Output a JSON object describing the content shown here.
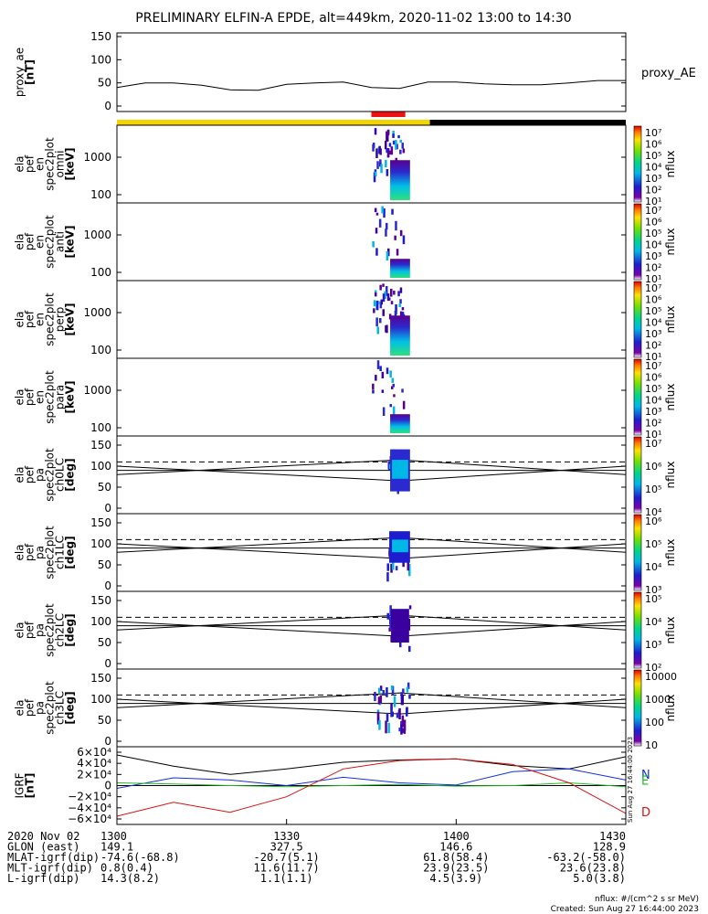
{
  "title": "PRELIMINARY ELFIN-A EPDE, alt=449km, 2020-11-02 13:00 to 14:30",
  "colors": {
    "bar_day": "#f2d500",
    "bar_night": "#000000",
    "science_zone": "#ee1111",
    "field_total": "#000000",
    "field_N": "#1030e0",
    "field_E": "#22bb22",
    "field_D": "#dd1111"
  },
  "panels": [
    {
      "label_lines": [
        "proxy_ae",
        "[nT]"
      ],
      "ticks": [
        "150",
        "100",
        "50",
        "0"
      ],
      "right_label": "proxy_AE"
    },
    {
      "label_lines": [
        "ela",
        "pef",
        "en",
        "spec2plot",
        "omni",
        "[keV]"
      ],
      "ticks": [
        "1000",
        "100"
      ],
      "cbar_ticks": [
        "10⁷",
        "10⁶",
        "10⁵",
        "10⁴",
        "10³",
        "10²",
        "10¹"
      ],
      "cbar_label": "nflux"
    },
    {
      "label_lines": [
        "ela",
        "pef",
        "en",
        "spec2plot",
        "anti",
        "[keV]"
      ],
      "ticks": [
        "1000",
        "100"
      ],
      "cbar_ticks": [
        "10⁷",
        "10⁶",
        "10⁵",
        "10⁴",
        "10³",
        "10²",
        "10¹"
      ],
      "cbar_label": "nflux"
    },
    {
      "label_lines": [
        "ela",
        "pef",
        "en",
        "spec2plot",
        "perp",
        "[keV]"
      ],
      "ticks": [
        "1000",
        "100"
      ],
      "cbar_ticks": [
        "10⁷",
        "10⁶",
        "10⁵",
        "10⁴",
        "10³",
        "10²",
        "10¹"
      ],
      "cbar_label": "nflux"
    },
    {
      "label_lines": [
        "ela",
        "pef",
        "en",
        "spec2plot",
        "para",
        "[keV]"
      ],
      "ticks": [
        "1000",
        "100"
      ],
      "cbar_ticks": [
        "10⁷",
        "10⁶",
        "10⁵",
        "10⁴",
        "10³",
        "10²",
        "10¹"
      ],
      "cbar_label": "nflux"
    },
    {
      "label_lines": [
        "ela",
        "pef",
        "pa",
        "spec2plot",
        "ch0LC",
        "[deg]"
      ],
      "ticks": [
        "150",
        "100",
        "50",
        "0"
      ],
      "cbar_ticks": [
        "10⁷",
        "10⁶",
        "10⁵",
        "10⁴"
      ],
      "cbar_label": "nflux"
    },
    {
      "label_lines": [
        "ela",
        "pef",
        "pa",
        "spec2plot",
        "ch1LC",
        "[deg]"
      ],
      "ticks": [
        "150",
        "100",
        "50",
        "0"
      ],
      "cbar_ticks": [
        "10⁶",
        "10⁵",
        "10⁴",
        "10³"
      ],
      "cbar_label": "nflux"
    },
    {
      "label_lines": [
        "ela",
        "pef",
        "pa",
        "spec2plot",
        "ch2LC",
        "[deg]"
      ],
      "ticks": [
        "150",
        "100",
        "50",
        "0"
      ],
      "cbar_ticks": [
        "10⁵",
        "10⁴",
        "10³",
        "10²"
      ],
      "cbar_label": "nflux"
    },
    {
      "label_lines": [
        "ela",
        "pef",
        "pa",
        "spec2plot",
        "ch3LC",
        "[deg]"
      ],
      "ticks": [
        "150",
        "100",
        "50",
        "0"
      ],
      "cbar_ticks": [
        "10000",
        "1000",
        "100",
        "10"
      ],
      "cbar_label": "nflux"
    },
    {
      "label_lines": [
        "IGRF",
        "[nT]"
      ],
      "ticks": [
        "6×10⁴",
        "4×10⁴",
        "2×10⁴",
        "0",
        "−2×10⁴",
        "−4×10⁴",
        "−6×10⁴"
      ],
      "legend": [
        "N",
        "E",
        "D"
      ],
      "stamp": "Sun Aug 27 16:44:00 2023"
    }
  ],
  "footer": {
    "rows": [
      {
        "label": "2020 Nov 02",
        "values": [
          "1300",
          "1330",
          "1400",
          "1430"
        ]
      },
      {
        "label": "GLON (east)",
        "values": [
          "149.1",
          "327.5",
          "146.6",
          "128.9"
        ]
      },
      {
        "label": "MLAT-igrf(dip)",
        "values": [
          "-74.6(-68.8)",
          "-20.7(5.1)",
          "61.8(58.4)",
          "-63.2(-58.0)"
        ]
      },
      {
        "label": "MLT-igrf(dip)",
        "values": [
          "0.8(0.4)",
          "11.6(11.7)",
          "23.9(23.5)",
          "23.6(23.8)"
        ]
      },
      {
        "label": "L-igrf(dip)",
        "values": [
          "14.3(8.2)",
          "1.1(1.1)",
          "4.5(3.9)",
          "5.0(3.8)"
        ]
      }
    ],
    "units_note": "nflux: #/(cm^2 s sr MeV)",
    "created": "Created: Sun Aug 27 16:44:00 2023"
  },
  "chart_data": {
    "type": "line",
    "x_range": [
      "2020-11-02 13:00",
      "2020-11-02 14:30"
    ],
    "proxy_ae": {
      "ylim": [
        0,
        150
      ],
      "x": [
        "13:00",
        "13:05",
        "13:10",
        "13:15",
        "13:20",
        "13:25",
        "13:30",
        "13:35",
        "13:40",
        "13:45",
        "13:50",
        "13:55",
        "14:00",
        "14:05",
        "14:10",
        "14:15",
        "14:20",
        "14:25",
        "14:30"
      ],
      "values": [
        40,
        50,
        50,
        45,
        35,
        34,
        47,
        50,
        52,
        40,
        38,
        52,
        52,
        48,
        46,
        46,
        50,
        55,
        55
      ]
    },
    "igrf": {
      "ylim": [
        -60000,
        60000
      ],
      "x": [
        "13:00",
        "13:10",
        "13:20",
        "13:30",
        "13:40",
        "13:50",
        "14:00",
        "14:10",
        "14:20",
        "14:30"
      ],
      "series": [
        {
          "name": "N",
          "values": [
            -5000,
            14000,
            10000,
            0,
            15000,
            5000,
            1000,
            25000,
            30000,
            10000
          ]
        },
        {
          "name": "E",
          "values": [
            5000,
            3000,
            0,
            -2000,
            0,
            2000,
            -1000,
            0,
            5000,
            -2000
          ]
        },
        {
          "name": "D",
          "values": [
            -55000,
            -30000,
            -48000,
            -20000,
            30000,
            45000,
            48000,
            38000,
            5000,
            -50000
          ]
        }
      ],
      "total_magnitude": [
        55000,
        35000,
        20000,
        30000,
        42000,
        46000,
        48000,
        36000,
        30000,
        52000
      ]
    },
    "pitch_angle_overlays": {
      "loss_cone_deg": [
        100,
        65,
        100
      ],
      "anti_loss_cone_deg": [
        80,
        115,
        80
      ],
      "reference_deg": 90
    },
    "flux_event": {
      "start": "13:48",
      "end": "13:52",
      "science_zone": [
        "13:45",
        "13:51"
      ]
    }
  }
}
